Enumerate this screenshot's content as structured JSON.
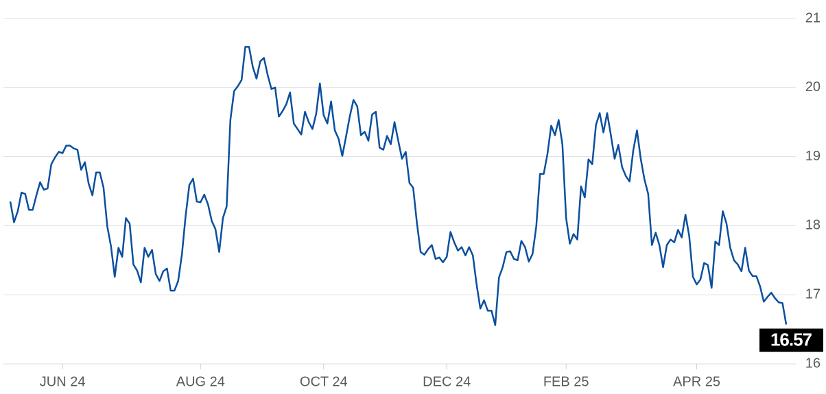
{
  "chart_data": {
    "type": "line",
    "color": "#0a4f9e",
    "grid": true,
    "ylim": [
      16,
      21
    ],
    "yticks": [
      16,
      17,
      18,
      19,
      20,
      21
    ],
    "categories": [
      null,
      null,
      null,
      null,
      null,
      null,
      null,
      null,
      null,
      null,
      null,
      null,
      null,
      null,
      "JUN 24",
      null,
      null,
      null,
      null,
      null,
      null,
      null,
      null,
      null,
      null,
      null,
      null,
      null,
      null,
      null,
      null,
      null,
      null,
      null,
      null,
      null,
      null,
      null,
      null,
      null,
      null,
      null,
      null,
      null,
      null,
      null,
      null,
      null,
      null,
      null,
      null,
      "AUG 24",
      null,
      null,
      null,
      null,
      null,
      null,
      null,
      null,
      null,
      null,
      null,
      null,
      null,
      null,
      null,
      null,
      null,
      null,
      null,
      null,
      null,
      null,
      null,
      null,
      null,
      null,
      null,
      null,
      null,
      null,
      null,
      null,
      "OCT 24",
      null,
      null,
      null,
      null,
      null,
      null,
      null,
      null,
      null,
      null,
      null,
      null,
      null,
      null,
      null,
      null,
      null,
      null,
      null,
      null,
      null,
      null,
      null,
      null,
      null,
      null,
      null,
      null,
      null,
      null,
      null,
      null,
      "DEC 24",
      null,
      null,
      null,
      null,
      null,
      null,
      null,
      null,
      null,
      null,
      null,
      null,
      null,
      null,
      null,
      null,
      null,
      null,
      null,
      null,
      null,
      null,
      null,
      null,
      null,
      null,
      null,
      null,
      null,
      null,
      null,
      "FEB 25",
      null,
      null,
      null,
      null,
      null,
      null,
      null,
      null,
      null,
      null,
      null,
      null,
      null,
      null,
      null,
      null,
      null,
      null,
      null,
      null,
      null,
      null,
      null,
      null,
      null,
      null,
      null,
      null,
      null,
      null,
      null,
      null,
      null,
      null,
      "APR 25",
      null,
      null,
      null,
      null,
      null,
      null,
      null,
      null,
      null,
      null,
      null,
      null,
      null,
      null,
      null,
      null,
      null,
      null,
      null,
      null,
      null,
      null,
      null,
      null
    ],
    "values": [
      18.35,
      18.05,
      18.21,
      18.48,
      18.46,
      18.23,
      18.23,
      18.44,
      18.63,
      18.52,
      18.54,
      18.89,
      18.99,
      19.07,
      19.05,
      19.16,
      19.16,
      19.12,
      19.1,
      18.81,
      18.92,
      18.61,
      18.44,
      18.77,
      18.77,
      18.55,
      17.99,
      17.7,
      17.26,
      17.68,
      17.55,
      18.11,
      18.03,
      17.44,
      17.35,
      17.18,
      17.68,
      17.55,
      17.65,
      17.3,
      17.2,
      17.34,
      17.38,
      17.06,
      17.06,
      17.2,
      17.58,
      18.14,
      18.59,
      18.68,
      18.35,
      18.34,
      18.45,
      18.31,
      18.07,
      17.95,
      17.62,
      18.11,
      18.28,
      19.53,
      19.95,
      20.02,
      20.11,
      20.59,
      20.59,
      20.3,
      20.13,
      20.38,
      20.43,
      20.18,
      19.98,
      20.0,
      19.58,
      19.66,
      19.76,
      19.93,
      19.48,
      19.4,
      19.32,
      19.65,
      19.5,
      19.4,
      19.62,
      20.06,
      19.6,
      19.48,
      19.8,
      19.38,
      19.26,
      19.01,
      19.29,
      19.58,
      19.82,
      19.73,
      19.31,
      19.36,
      19.23,
      19.61,
      19.65,
      19.13,
      19.1,
      19.3,
      19.18,
      19.5,
      19.23,
      18.97,
      19.07,
      18.62,
      18.55,
      18.04,
      17.62,
      17.58,
      17.66,
      17.72,
      17.52,
      17.54,
      17.47,
      17.55,
      17.91,
      17.76,
      17.64,
      17.69,
      17.57,
      17.69,
      17.57,
      17.15,
      16.8,
      16.92,
      16.77,
      16.77,
      16.56,
      17.25,
      17.4,
      17.62,
      17.63,
      17.52,
      17.5,
      17.78,
      17.69,
      17.48,
      17.59,
      17.99,
      18.75,
      18.75,
      19.04,
      19.45,
      19.31,
      19.53,
      19.18,
      18.11,
      17.74,
      17.88,
      17.8,
      18.57,
      18.41,
      18.96,
      18.89,
      19.46,
      19.63,
      19.35,
      19.63,
      19.31,
      18.97,
      19.17,
      18.85,
      18.72,
      18.64,
      19.09,
      19.38,
      18.97,
      18.67,
      18.46,
      17.72,
      17.9,
      17.72,
      17.4,
      17.72,
      17.8,
      17.76,
      17.94,
      17.83,
      18.16,
      17.85,
      17.26,
      17.15,
      17.22,
      17.46,
      17.43,
      17.1,
      17.77,
      17.72,
      18.21,
      18.03,
      17.68,
      17.5,
      17.44,
      17.34,
      17.68,
      17.35,
      17.27,
      17.27,
      17.12,
      16.9,
      16.97,
      17.03,
      16.95,
      16.89,
      16.88,
      16.57
    ]
  }
}
